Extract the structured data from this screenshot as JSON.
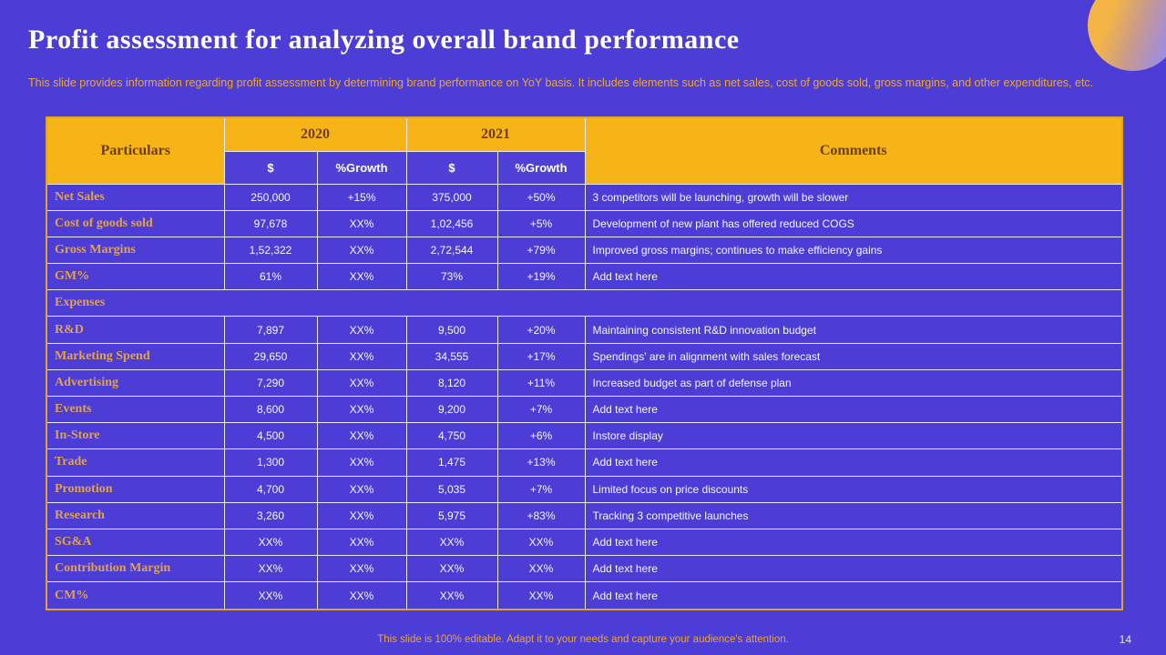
{
  "slide": {
    "title": "Profit assessment for analyzing overall brand performance",
    "subtitle": "This slide provides information regarding profit assessment by determining brand performance on YoY basis. It includes elements such as net sales, cost of goods sold, gross margins, and other expenditures, etc.",
    "footer": "This slide is 100% editable. Adapt it to your needs and capture your audience's attention.",
    "page_number": "14"
  },
  "colors": {
    "background": "#4B3DD6",
    "header_band": "#F6B417",
    "header_text": "#6B3E0E",
    "row_label": "#E2A24B",
    "value_text": "#F7F5FF",
    "accent_orange": "#E8A33D",
    "table_outer_border": "#DFA42B",
    "circle_gradient_start": "#F4B546",
    "circle_gradient_end": "#9C8BE8"
  },
  "table": {
    "headers": {
      "particulars": "Particulars",
      "year_2020": "2020",
      "year_2021": "2021",
      "comments": "Comments",
      "dollar_2020": "$",
      "growth_2020": "%Growth",
      "dollar_2021": "$",
      "growth_2021": "%Growth"
    },
    "rows": [
      {
        "label": "Net Sales",
        "d2020": "250,000",
        "g2020": "+15%",
        "d2021": "375,000",
        "g2021": "+50%",
        "comment": "3 competitors will be launching, growth will be slower"
      },
      {
        "label": "Cost of goods sold",
        "d2020": "97,678",
        "g2020": "XX%",
        "d2021": "1,02,456",
        "g2021": "+5%",
        "comment": "Development of new plant has offered reduced COGS"
      },
      {
        "label": "Gross Margins",
        "d2020": "1,52,322",
        "g2020": "XX%",
        "d2021": "2,72,544",
        "g2021": "+79%",
        "comment": "Improved gross margins; continues to make efficiency gains"
      },
      {
        "label": "GM%",
        "d2020": "61%",
        "g2020": "XX%",
        "d2021": "73%",
        "g2021": "+19%",
        "comment": "Add text here"
      },
      {
        "label": "Expenses",
        "section": true
      },
      {
        "label": "R&D",
        "d2020": "7,897",
        "g2020": "XX%",
        "d2021": "9,500",
        "g2021": "+20%",
        "comment": "Maintaining consistent R&D innovation budget"
      },
      {
        "label": "Marketing Spend",
        "d2020": "29,650",
        "g2020": "XX%",
        "d2021": "34,555",
        "g2021": "+17%",
        "comment": "Spendings' are in alignment with sales forecast"
      },
      {
        "label": "Advertising",
        "d2020": "7,290",
        "g2020": "XX%",
        "d2021": "8,120",
        "g2021": "+11%",
        "comment": "Increased budget as part of defense plan"
      },
      {
        "label": "Events",
        "d2020": "8,600",
        "g2020": "XX%",
        "d2021": "9,200",
        "g2021": "+7%",
        "comment": "Add text here"
      },
      {
        "label": "In-Store",
        "d2020": "4,500",
        "g2020": "XX%",
        "d2021": "4,750",
        "g2021": "+6%",
        "comment": "Instore display"
      },
      {
        "label": "Trade",
        "d2020": "1,300",
        "g2020": "XX%",
        "d2021": "1,475",
        "g2021": "+13%",
        "comment": "Add text here"
      },
      {
        "label": "Promotion",
        "d2020": "4,700",
        "g2020": "XX%",
        "d2021": "5,035",
        "g2021": "+7%",
        "comment": "Limited focus on price discounts"
      },
      {
        "label": "Research",
        "d2020": "3,260",
        "g2020": "XX%",
        "d2021": "5,975",
        "g2021": "+83%",
        "comment": "Tracking 3 competitive launches"
      },
      {
        "label": "SG&A",
        "d2020": "XX%",
        "g2020": "XX%",
        "d2021": "XX%",
        "g2021": "XX%",
        "comment": "Add text here"
      },
      {
        "label": "Contribution Margin",
        "d2020": "XX%",
        "g2020": "XX%",
        "d2021": "XX%",
        "g2021": "XX%",
        "comment": "Add text here"
      },
      {
        "label": "CM%",
        "d2020": "XX%",
        "g2020": "XX%",
        "d2021": "XX%",
        "g2021": "XX%",
        "comment": "Add text here"
      }
    ]
  }
}
